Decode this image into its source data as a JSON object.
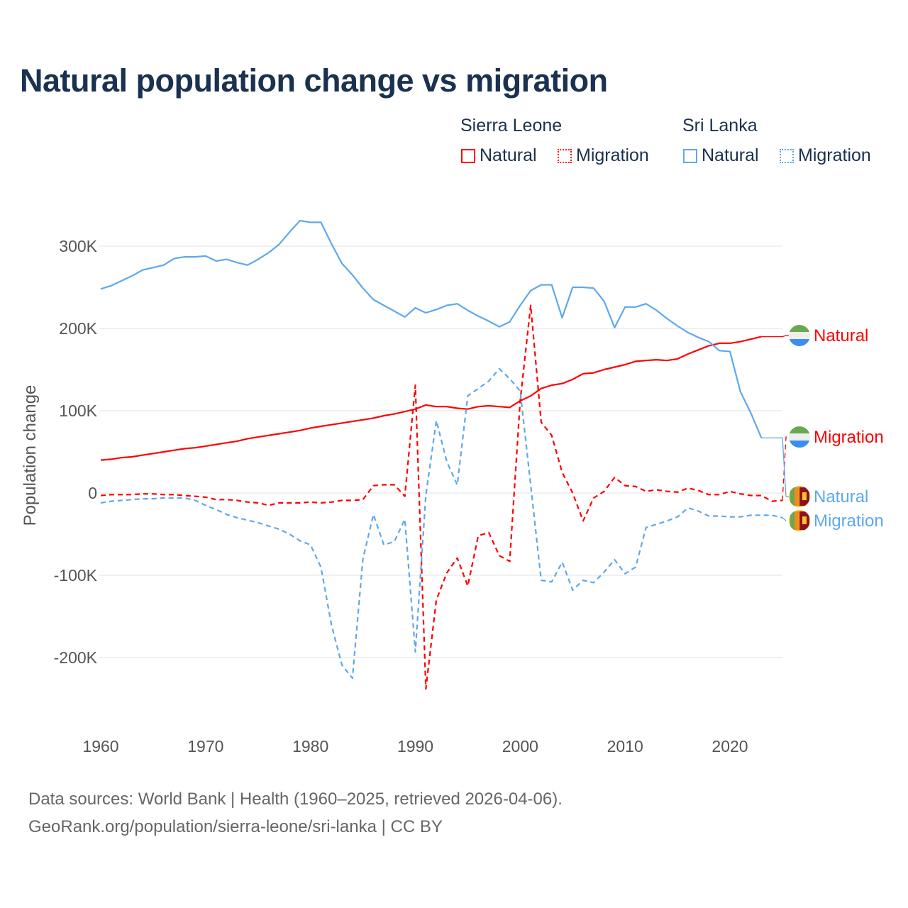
{
  "title": "Natural population change vs migration",
  "legend": {
    "groups": [
      {
        "name": "Sierra Leone",
        "items": [
          "Natural",
          "Migration"
        ],
        "color": "#ff0000"
      },
      {
        "name": "Sri Lanka",
        "items": [
          "Natural",
          "Migration"
        ],
        "color": "#5ea8ec"
      }
    ]
  },
  "footer": {
    "line1": "Data sources: World Bank | Health (1960–2025, retrieved 2026-04-06).",
    "line2": "GeoRank.org/population/sierra-leone/sri-lanka | CC BY"
  },
  "chart_data": {
    "type": "line",
    "title": "Natural population change vs migration",
    "xlabel": "",
    "ylabel": "Population change",
    "xlim": [
      1960,
      2025
    ],
    "ylim": [
      -260000,
      340000
    ],
    "x_ticks": [
      1960,
      1970,
      1980,
      1990,
      2000,
      2010,
      2020
    ],
    "x_tick_labels": [
      "1960",
      "1970",
      "1980",
      "1990",
      "2000",
      "2010",
      "2020"
    ],
    "y_ticks": [
      -200000,
      -100000,
      0,
      100000,
      200000,
      300000
    ],
    "y_tick_labels": [
      "-200K",
      "-100K",
      "0",
      "100K",
      "200K",
      "300K"
    ],
    "grid": true,
    "legend_placement": "top-right",
    "start_year": 1960,
    "series": [
      {
        "name": "Sierra Leone Natural",
        "label": "Natural",
        "color": "#ff0000",
        "dash": false,
        "flag": "sierra-leone",
        "values": [
          40,
          41,
          43,
          44,
          46,
          48,
          50,
          52,
          54,
          55,
          57,
          59,
          61,
          63,
          66,
          68,
          70,
          72,
          74,
          76,
          79,
          81,
          83,
          85,
          87,
          89,
          91,
          94,
          96,
          99,
          102,
          107,
          105,
          105,
          103,
          102,
          105,
          106,
          105,
          104,
          112,
          118,
          127,
          131,
          133,
          138,
          145,
          146,
          150,
          153,
          156,
          160,
          161,
          162,
          161,
          163,
          169,
          174,
          179,
          182,
          182,
          184,
          187,
          190
        ]
      },
      {
        "name": "Sierra Leone Migration",
        "label": "Migration",
        "color": "#ff0000",
        "dash": true,
        "flag": "sierra-leone",
        "values": [
          -3,
          -2,
          -2,
          -2,
          -1,
          -1,
          -2,
          -2,
          -3,
          -4,
          -5,
          -8,
          -8,
          -9,
          -11,
          -12,
          -15,
          -12,
          -12,
          -12,
          -11,
          -12,
          -11,
          -9,
          -9,
          -8,
          9,
          10,
          10,
          -4,
          131,
          -238,
          -130,
          -97,
          -79,
          -113,
          -52,
          -48,
          -76,
          -83,
          112,
          228,
          86,
          70,
          25,
          0,
          -34,
          -6,
          2,
          19,
          9,
          8,
          2,
          4,
          2,
          1,
          6,
          3,
          -2,
          -2,
          2,
          -1,
          -3,
          -3,
          -10,
          -9
        ]
      },
      {
        "name": "Sri Lanka Natural",
        "label": "Natural",
        "color": "#5ea8ec",
        "dash": false,
        "flag": "sri-lanka",
        "values": [
          248,
          252,
          258,
          264,
          271,
          274,
          277,
          285,
          287,
          287,
          288,
          282,
          284,
          280,
          277,
          284,
          292,
          302,
          317,
          331,
          329,
          329,
          303,
          279,
          265,
          249,
          235,
          228,
          221,
          214,
          225,
          219,
          223,
          228,
          230,
          222,
          215,
          209,
          202,
          208,
          228,
          246,
          253,
          253,
          213,
          250,
          250,
          249,
          233,
          201,
          226,
          226,
          230,
          222,
          212,
          203,
          195,
          189,
          184,
          173,
          172,
          123,
          97,
          67
        ]
      },
      {
        "name": "Sri Lanka Migration",
        "label": "Migration",
        "color": "#5ea8ec",
        "dash": true,
        "flag": "sri-lanka",
        "values": [
          -12,
          -10,
          -9,
          -8,
          -7,
          -7,
          -6,
          -6,
          -6,
          -9,
          -15,
          -20,
          -26,
          -30,
          -33,
          -36,
          -40,
          -44,
          -50,
          -58,
          -63,
          -90,
          -160,
          -209,
          -225,
          -80,
          -26,
          -63,
          -59,
          -32,
          -193,
          -3,
          88,
          38,
          10,
          118,
          127,
          136,
          151,
          139,
          124,
          10,
          -106,
          -108,
          -84,
          -118,
          -106,
          -109,
          -96,
          -81,
          -98,
          -90,
          -42,
          -38,
          -34,
          -29,
          -18,
          -22,
          -28,
          -28,
          -29,
          -29,
          -27,
          -27,
          -27,
          -30
        ]
      }
    ],
    "value_units": "thousands"
  }
}
